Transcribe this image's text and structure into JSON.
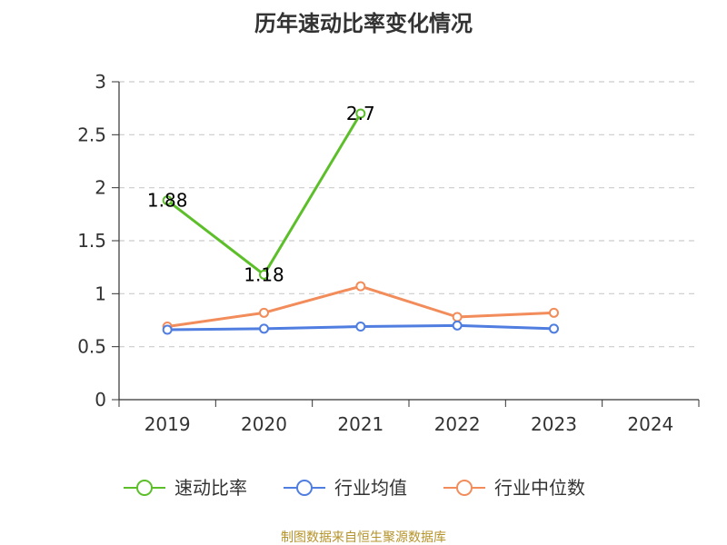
{
  "chart_data": {
    "type": "line",
    "title": "历年速动比率变化情况",
    "categories": [
      "2019",
      "2020",
      "2021",
      "2022",
      "2023",
      "2024"
    ],
    "ylim": [
      0,
      3
    ],
    "yticks": [
      0,
      0.5,
      1,
      1.5,
      2,
      2.5,
      3
    ],
    "ytick_labels": [
      "0",
      "0.5",
      "1",
      "1.5",
      "2",
      "2.5",
      "3"
    ],
    "grid": true,
    "legend_position": "bottom",
    "series": [
      {
        "name": "速动比率",
        "color": "#5cbf2a",
        "values": [
          1.88,
          1.18,
          2.7,
          null,
          null,
          null
        ],
        "labels": [
          "1.88",
          "1.18",
          "2.7"
        ]
      },
      {
        "name": "行业均值",
        "color": "#4f7de0",
        "values": [
          0.66,
          0.67,
          0.69,
          0.7,
          0.67,
          null
        ]
      },
      {
        "name": "行业中位数",
        "color": "#f28c5a",
        "values": [
          0.69,
          0.82,
          1.07,
          0.78,
          0.82,
          null
        ]
      }
    ]
  },
  "footer": {
    "source": "制图数据来自恒生聚源数据库"
  }
}
